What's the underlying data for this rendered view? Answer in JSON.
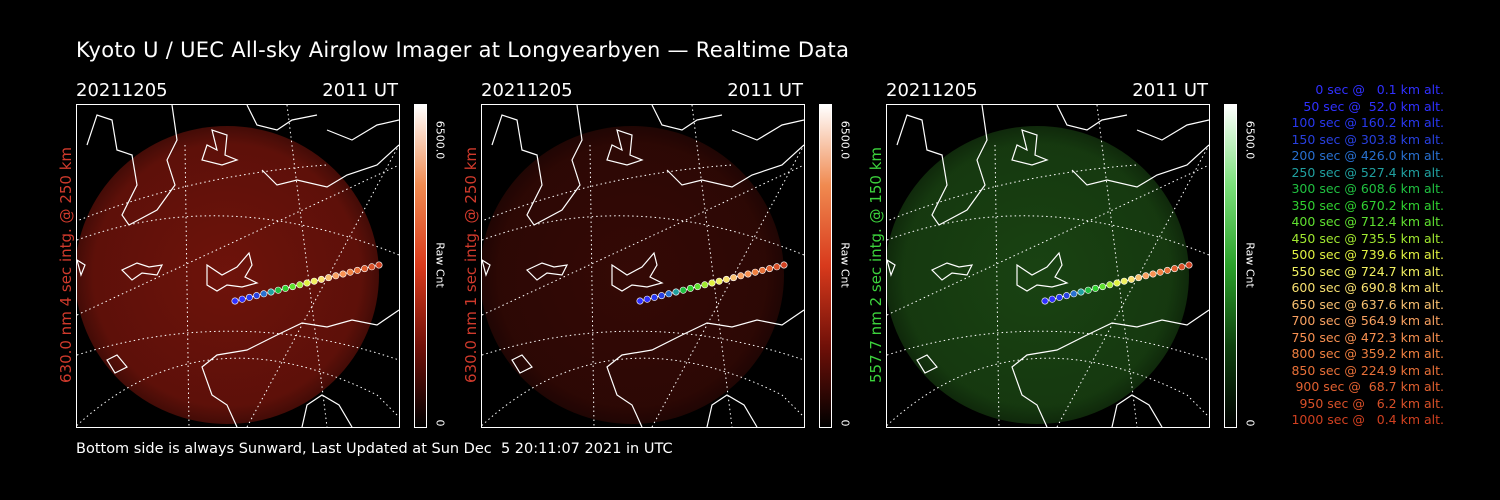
{
  "title": "Kyoto U / UEC All-sky Airglow Imager at Longyearbyen — Realtime Data",
  "panels": [
    {
      "date": "20211205",
      "time": "2011 UT",
      "ylabel": "630.0 nm 4 sec intg. @ 250 km",
      "ylabel_color": "#d03a2c",
      "image_color": "#7a150c",
      "image_intensity": 0.9,
      "cbar_max": "6500.0",
      "cbar_unit": "Raw Cnt",
      "cbar_min": "0",
      "cbar_gradient": [
        "#ffffff",
        "#f08a50",
        "#d83a1c",
        "#701008",
        "#000000"
      ]
    },
    {
      "date": "20211205",
      "time": "2011 UT",
      "ylabel": "630.0 nm 1 sec intg. @ 250 km",
      "ylabel_color": "#d03a2c",
      "image_color": "#3a0a06",
      "image_intensity": 0.9,
      "cbar_max": "6500.0",
      "cbar_unit": "Raw Cnt",
      "cbar_min": "0",
      "cbar_gradient": [
        "#ffffff",
        "#f08a50",
        "#d83a1c",
        "#701008",
        "#000000"
      ]
    },
    {
      "date": "20211205",
      "time": "2011 UT",
      "ylabel": "557.7 nm 2 sec intg. @ 150 km",
      "ylabel_color": "#3cd23c",
      "image_color": "#1c4a14",
      "image_intensity": 0.9,
      "cbar_max": "6500.0",
      "cbar_unit": "Raw Cnt",
      "cbar_min": "0",
      "cbar_gradient": [
        "#ffffff",
        "#7ae07a",
        "#2aa02a",
        "#0e400e",
        "#000000"
      ]
    }
  ],
  "footer": "Bottom side is always Sunward, Last Updated at Sun Dec  5 20:11:07 2021 in UTC",
  "legend": [
    {
      "text": "0 sec @   0.1 km alt.",
      "color": "#3030ff"
    },
    {
      "text": "50 sec @  52.0 km alt.",
      "color": "#3030ff"
    },
    {
      "text": "100 sec @ 160.2 km alt.",
      "color": "#2838f0"
    },
    {
      "text": "150 sec @ 303.8 km alt.",
      "color": "#2840e0"
    },
    {
      "text": "200 sec @ 426.0 km alt.",
      "color": "#2870d0"
    },
    {
      "text": "250 sec @ 527.4 km alt.",
      "color": "#20a0a0"
    },
    {
      "text": "300 sec @ 608.6 km alt.",
      "color": "#20c040"
    },
    {
      "text": "350 sec @ 670.2 km alt.",
      "color": "#30d030"
    },
    {
      "text": "400 sec @ 712.4 km alt.",
      "color": "#60e030"
    },
    {
      "text": "450 sec @ 735.5 km alt.",
      "color": "#a0e830"
    },
    {
      "text": "500 sec @ 739.6 km alt.",
      "color": "#e0f040"
    },
    {
      "text": "550 sec @ 724.7 km alt.",
      "color": "#f0f060"
    },
    {
      "text": "600 sec @ 690.8 km alt.",
      "color": "#f8e070"
    },
    {
      "text": "650 sec @ 637.6 km alt.",
      "color": "#f8c070"
    },
    {
      "text": "700 sec @ 564.9 km alt.",
      "color": "#f8a060"
    },
    {
      "text": "750 sec @ 472.3 km alt.",
      "color": "#f89050"
    },
    {
      "text": "800 sec @ 359.2 km alt.",
      "color": "#f08040"
    },
    {
      "text": "850 sec @ 224.9 km alt.",
      "color": "#e87038"
    },
    {
      "text": "900 sec @  68.7 km alt.",
      "color": "#e06030"
    },
    {
      "text": "950 sec @   6.2 km alt.",
      "color": "#d85028"
    },
    {
      "text": "1000 sec @   0.4 km alt.",
      "color": "#d04020"
    }
  ]
}
